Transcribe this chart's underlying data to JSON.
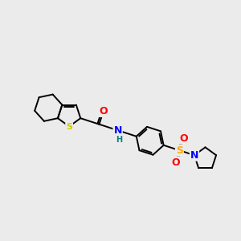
{
  "background_color": "#ebebeb",
  "bond_color": "#000000",
  "atom_colors": {
    "O": "#ff0000",
    "N": "#0000ff",
    "S_thio": "#cccc00",
    "S_sulfonyl": "#ffaa00",
    "H": "#008080",
    "C": "#000000"
  },
  "figsize": [
    3.0,
    3.0
  ],
  "dpi": 100
}
